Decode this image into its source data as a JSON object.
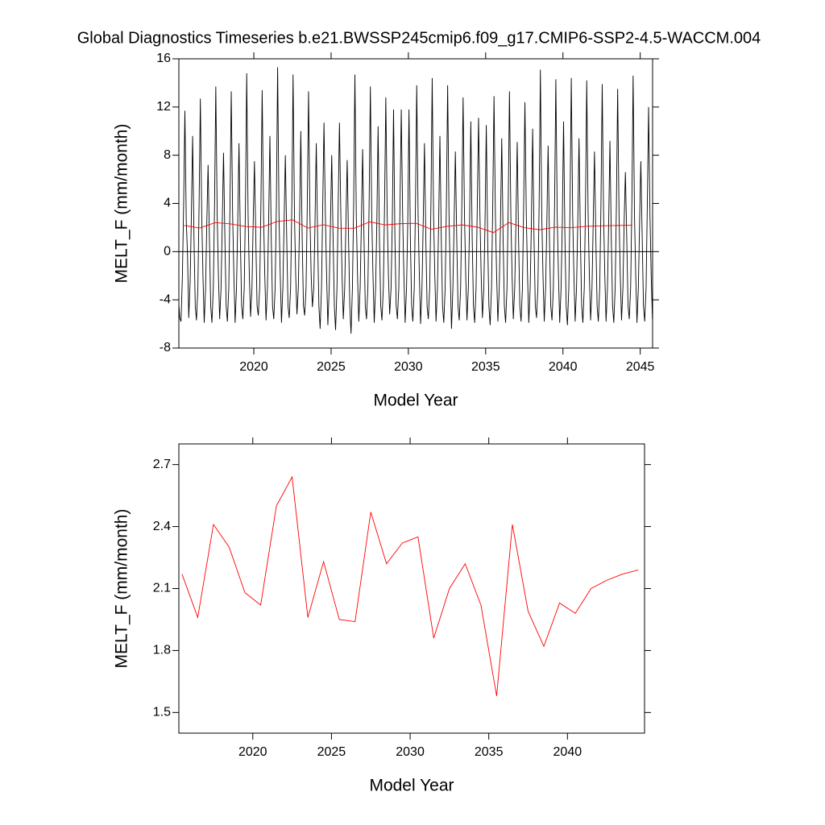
{
  "chart_data": [
    {
      "type": "line",
      "title": "Global Diagnostics Timeseries b.e21.BWSSP245cmip6.f09_g17.CMIP6-SSP2-4.5-WACCM.004",
      "y_label": "MELT_F (mm/month)",
      "x_label": "Model Year",
      "xlim": [
        2015.15,
        2045.8
      ],
      "ylim": [
        -8,
        16
      ],
      "xticks": [
        2020,
        2025,
        2030,
        2035,
        2040,
        2045
      ],
      "yticks": [
        -8,
        -4,
        0,
        4,
        8,
        12,
        16
      ],
      "hline": 0,
      "hline_color": "#000000",
      "series": [
        {
          "color": "#000000",
          "x": [
            2015.04,
            2015.13,
            2015.21,
            2015.29,
            2015.38,
            2015.46,
            2015.54,
            2015.63,
            2015.71,
            2015.79,
            2015.88,
            2015.96,
            2016.04,
            2016.13,
            2016.21,
            2016.29,
            2016.38,
            2016.46,
            2016.54,
            2016.63,
            2016.71,
            2016.79,
            2016.88,
            2016.96,
            2017.04,
            2017.13,
            2017.21,
            2017.29,
            2017.38,
            2017.46,
            2017.54,
            2017.63,
            2017.71,
            2017.79,
            2017.88,
            2017.96,
            2018.04,
            2018.13,
            2018.21,
            2018.29,
            2018.38,
            2018.46,
            2018.54,
            2018.63,
            2018.71,
            2018.79,
            2018.88,
            2018.96,
            2019.04,
            2019.13,
            2019.21,
            2019.29,
            2019.38,
            2019.46,
            2019.54,
            2019.63,
            2019.71,
            2019.79,
            2019.88,
            2019.96,
            2020.04,
            2020.13,
            2020.21,
            2020.29,
            2020.38,
            2020.46,
            2020.54,
            2020.63,
            2020.71,
            2020.79,
            2020.88,
            2020.96,
            2021.04,
            2021.13,
            2021.21,
            2021.29,
            2021.38,
            2021.46,
            2021.54,
            2021.63,
            2021.71,
            2021.79,
            2021.88,
            2021.96,
            2022.04,
            2022.13,
            2022.21,
            2022.29,
            2022.38,
            2022.46,
            2022.54,
            2022.63,
            2022.71,
            2022.79,
            2022.88,
            2022.96,
            2023.04,
            2023.13,
            2023.21,
            2023.29,
            2023.38,
            2023.46,
            2023.54,
            2023.63,
            2023.71,
            2023.79,
            2023.88,
            2023.96,
            2024.04,
            2024.13,
            2024.21,
            2024.29,
            2024.38,
            2024.46,
            2024.54,
            2024.63,
            2024.71,
            2024.79,
            2024.88,
            2024.96,
            2025.04,
            2025.13,
            2025.21,
            2025.29,
            2025.38,
            2025.46,
            2025.54,
            2025.63,
            2025.71,
            2025.79,
            2025.88,
            2025.96,
            2026.04,
            2026.13,
            2026.21,
            2026.29,
            2026.38,
            2026.46,
            2026.54,
            2026.63,
            2026.71,
            2026.79,
            2026.88,
            2026.96,
            2027.04,
            2027.13,
            2027.21,
            2027.29,
            2027.38,
            2027.46,
            2027.54,
            2027.63,
            2027.71,
            2027.79,
            2027.88,
            2027.96,
            2028.04,
            2028.13,
            2028.21,
            2028.29,
            2028.38,
            2028.46,
            2028.54,
            2028.63,
            2028.71,
            2028.79,
            2028.88,
            2028.96,
            2029.04,
            2029.13,
            2029.21,
            2029.29,
            2029.38,
            2029.46,
            2029.54,
            2029.63,
            2029.71,
            2029.79,
            2029.88,
            2029.96,
            2030.04,
            2030.13,
            2030.21,
            2030.29,
            2030.38,
            2030.46,
            2030.54,
            2030.63,
            2030.71,
            2030.79,
            2030.88,
            2030.96,
            2031.04,
            2031.13,
            2031.21,
            2031.29,
            2031.38,
            2031.46,
            2031.54,
            2031.63,
            2031.71,
            2031.79,
            2031.88,
            2031.96,
            2032.04,
            2032.13,
            2032.21,
            2032.29,
            2032.38,
            2032.46,
            2032.54,
            2032.63,
            2032.71,
            2032.79,
            2032.88,
            2032.96,
            2033.04,
            2033.13,
            2033.21,
            2033.29,
            2033.38,
            2033.46,
            2033.54,
            2033.63,
            2033.71,
            2033.79,
            2033.88,
            2033.96,
            2034.04,
            2034.13,
            2034.21,
            2034.29,
            2034.38,
            2034.46,
            2034.54,
            2034.63,
            2034.71,
            2034.79,
            2034.88,
            2034.96,
            2035.04,
            2035.13,
            2035.21,
            2035.29,
            2035.38,
            2035.46,
            2035.54,
            2035.63,
            2035.71,
            2035.79,
            2035.88,
            2035.96,
            2036.04,
            2036.13,
            2036.21,
            2036.29,
            2036.38,
            2036.46,
            2036.54,
            2036.63,
            2036.71,
            2036.79,
            2036.88,
            2036.96,
            2037.04,
            2037.13,
            2037.21,
            2037.29,
            2037.38,
            2037.46,
            2037.54,
            2037.63,
            2037.71,
            2037.79,
            2037.88,
            2037.96,
            2038.04,
            2038.13,
            2038.21,
            2038.29,
            2038.38,
            2038.46,
            2038.54,
            2038.63,
            2038.71,
            2038.79,
            2038.88,
            2038.96,
            2039.04,
            2039.13,
            2039.21,
            2039.29,
            2039.38,
            2039.46,
            2039.54,
            2039.63,
            2039.71,
            2039.79,
            2039.88,
            2039.96,
            2040.04,
            2040.13,
            2040.21,
            2040.29,
            2040.38,
            2040.46,
            2040.54,
            2040.63,
            2040.71,
            2040.79,
            2040.88,
            2040.96,
            2041.04,
            2041.13,
            2041.21,
            2041.29,
            2041.38,
            2041.46,
            2041.54,
            2041.63,
            2041.71,
            2041.79,
            2041.88,
            2041.96,
            2042.04,
            2042.13,
            2042.21,
            2042.29,
            2042.38,
            2042.46,
            2042.54,
            2042.63,
            2042.71,
            2042.79,
            2042.88,
            2042.96,
            2043.04,
            2043.13,
            2043.21,
            2043.29,
            2043.38,
            2043.46,
            2043.54,
            2043.63,
            2043.71,
            2043.79,
            2043.88,
            2043.96,
            2044.04,
            2044.13,
            2044.21,
            2044.29,
            2044.38,
            2044.46,
            2044.54,
            2044.63,
            2044.71,
            2044.79,
            2044.88,
            2044.96,
            2045.04,
            2045.13,
            2045.21,
            2045.29,
            2045.38,
            2045.46,
            2045.54,
            2045.63,
            2045.71,
            2045.79,
            2045.88,
            2045.96
          ],
          "values": [
            -5.8,
            -4,
            -5.5,
            -5.8,
            -2,
            4,
            11.7,
            2.5,
            -0.2,
            -5.5,
            -2.5,
            3,
            9.6,
            1,
            -4.5,
            -5.7,
            -3,
            4,
            12.7,
            3,
            -2,
            -5.9,
            -3,
            2.5,
            7.2,
            1,
            -4.5,
            -5.9,
            -3,
            4,
            13.7,
            3,
            -2,
            -5.6,
            -3,
            2.5,
            8.2,
            1,
            -4.5,
            -5.8,
            -3,
            4,
            13.3,
            3,
            -2,
            -5.9,
            -3,
            2.5,
            9.0,
            1,
            -4.5,
            -5.6,
            -3,
            4,
            14.8,
            3,
            -2,
            -5.4,
            -3,
            2.5,
            7.5,
            1,
            -4.5,
            -5.3,
            -3,
            4,
            13.4,
            3,
            -2,
            -5.7,
            -3,
            2.5,
            9.6,
            1,
            -4.5,
            -5.6,
            -3,
            4,
            15.3,
            3,
            -2,
            -5.9,
            -3,
            2.5,
            8.0,
            1,
            -4.5,
            -5.5,
            -3,
            4,
            14.7,
            3,
            -2,
            -5.2,
            -3,
            2.5,
            10.0,
            1,
            -4.5,
            -5.3,
            -3,
            4,
            13.3,
            3,
            -2,
            -4.6,
            -3,
            2.5,
            9.0,
            1,
            -4.5,
            -6.4,
            -3,
            4,
            10.7,
            3,
            -2,
            -6.1,
            -3,
            2.5,
            8.0,
            1,
            -4.5,
            -6.5,
            -3,
            4,
            10.7,
            3,
            -2,
            -5.6,
            -3,
            2.5,
            7.6,
            1,
            -4.5,
            -6.8,
            -3,
            4,
            14.7,
            3,
            -2,
            -5.8,
            -3,
            2.5,
            8.5,
            1,
            -4.5,
            -5.6,
            -3,
            4,
            13.7,
            3,
            -2,
            -5.9,
            -3,
            2.5,
            10.4,
            1,
            -4.5,
            -5.7,
            -3,
            4,
            12.8,
            3,
            -2,
            -5.2,
            -3,
            2.5,
            11.8,
            1,
            -4.5,
            -5.6,
            -3,
            4,
            11.8,
            3,
            -2,
            -5.9,
            -3,
            2.5,
            11.8,
            1,
            -4.5,
            -5.8,
            -3,
            4,
            13.8,
            3,
            -2,
            -6.0,
            -3,
            2.5,
            9.0,
            1,
            -4.5,
            -5.6,
            -3,
            4,
            14.4,
            3,
            -2,
            -5.8,
            -3,
            2.5,
            9.6,
            1,
            -4.5,
            -5.9,
            -3,
            4,
            13.8,
            3,
            -2,
            -6.4,
            -3,
            2.5,
            8.3,
            1,
            -4.5,
            -5.7,
            -3,
            4,
            12.8,
            3,
            -2,
            -5.7,
            -3,
            2.5,
            10.8,
            1,
            -4.5,
            -5.9,
            -3,
            4,
            11.1,
            3,
            -2,
            -5.5,
            -3,
            2.5,
            10.5,
            1,
            -4.5,
            -6.1,
            -3,
            4,
            12.9,
            3,
            -2,
            -5.8,
            -3,
            2.5,
            9.4,
            1,
            -4.5,
            -5.9,
            -3,
            4,
            13.3,
            3,
            -2,
            -5.6,
            -3,
            2.5,
            9.1,
            1,
            -4.5,
            -5.8,
            -3,
            4,
            12.4,
            3,
            -2,
            -5.9,
            -3,
            2.5,
            10.2,
            1,
            -4.5,
            -5.5,
            -3,
            4,
            15.1,
            3,
            -2,
            -5.8,
            -3,
            2.5,
            8.8,
            1,
            -4.5,
            -5.7,
            -3,
            4,
            14.3,
            3,
            -2,
            -5.9,
            -3,
            2.5,
            10.8,
            1,
            -4.5,
            -6.1,
            -3,
            4,
            14.4,
            3,
            -2,
            -5.8,
            -3,
            2.5,
            9.4,
            1,
            -4.5,
            -5.9,
            -3,
            4,
            14.2,
            3,
            -2,
            -5.7,
            -3,
            2.5,
            8.3,
            1,
            -4.5,
            -5.8,
            -3,
            4,
            13.9,
            3,
            -2,
            -5.8,
            -3,
            2.5,
            9.2,
            1,
            -4.5,
            -5.9,
            -3,
            4,
            13.5,
            3,
            -2,
            -5.7,
            -3,
            2.5,
            6.6,
            1,
            -4.5,
            -5.6,
            -3,
            4,
            14.6,
            3,
            -2,
            -5.9,
            -3,
            2.5,
            7.5,
            1,
            -4.5,
            -5.8,
            -3,
            4,
            12.0,
            3,
            -2,
            -5.6,
            -3,
            2.5
          ]
        },
        {
          "color": "#ff0000",
          "x": [
            2015.5,
            2016.5,
            2017.5,
            2018.5,
            2019.5,
            2020.5,
            2021.5,
            2022.5,
            2023.5,
            2024.5,
            2025.5,
            2026.5,
            2027.5,
            2028.5,
            2029.5,
            2030.5,
            2031.5,
            2032.5,
            2033.5,
            2034.5,
            2035.5,
            2036.5,
            2037.5,
            2038.5,
            2039.5,
            2040.5,
            2041.5,
            2042.5,
            2043.5,
            2044.5
          ],
          "values": [
            2.17,
            1.96,
            2.41,
            2.3,
            2.08,
            2.02,
            2.5,
            2.64,
            1.96,
            2.23,
            1.95,
            1.94,
            2.47,
            2.22,
            2.32,
            2.35,
            1.86,
            2.1,
            2.22,
            2.02,
            1.58,
            2.41,
            1.99,
            1.82,
            2.03,
            1.98,
            2.1,
            2.14,
            2.17,
            2.19
          ]
        }
      ]
    },
    {
      "type": "line",
      "y_label": "MELT_F (mm/month)",
      "x_label": "Model Year",
      "xlim": [
        2015.3,
        2044.9
      ],
      "ylim": [
        1.4,
        2.8
      ],
      "xticks": [
        2020,
        2025,
        2030,
        2035,
        2040
      ],
      "yticks": [
        1.5,
        1.8,
        2.1,
        2.4,
        2.7
      ],
      "series": [
        {
          "color": "#ff0000",
          "x": [
            2015.5,
            2016.5,
            2017.5,
            2018.5,
            2019.5,
            2020.5,
            2021.5,
            2022.5,
            2023.5,
            2024.5,
            2025.5,
            2026.5,
            2027.5,
            2028.5,
            2029.5,
            2030.5,
            2031.5,
            2032.5,
            2033.5,
            2034.5,
            2035.5,
            2036.5,
            2037.5,
            2038.5,
            2039.5,
            2040.5,
            2041.5,
            2042.5,
            2043.5,
            2044.5
          ],
          "values": [
            2.17,
            1.96,
            2.41,
            2.3,
            2.08,
            2.02,
            2.5,
            2.64,
            1.96,
            2.23,
            1.95,
            1.94,
            2.47,
            2.22,
            2.32,
            2.35,
            1.86,
            2.1,
            2.22,
            2.02,
            1.58,
            2.41,
            1.99,
            1.82,
            2.03,
            1.98,
            2.1,
            2.14,
            2.17,
            2.19
          ]
        }
      ]
    }
  ]
}
